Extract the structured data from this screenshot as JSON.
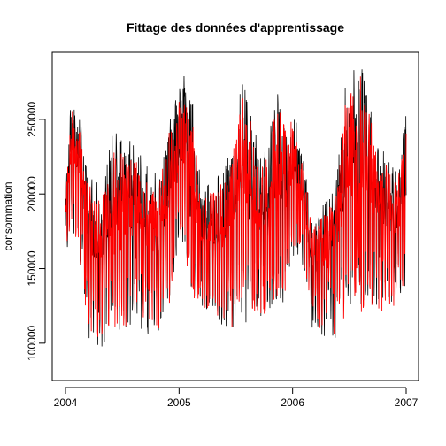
{
  "chart_data": {
    "type": "line",
    "title": "Fittage des données d'apprentissage",
    "xlabel": "",
    "ylabel": "consommation",
    "xlim": [
      2004.0,
      2007.0
    ],
    "ylim": [
      75000,
      295000
    ],
    "x_ticks": [
      2004,
      2005,
      2006,
      2007
    ],
    "x_tick_labels": [
      "2004",
      "2005",
      "2006",
      "2007"
    ],
    "y_ticks": [
      100000,
      150000,
      200000,
      250000
    ],
    "y_tick_labels": [
      "100000",
      "150000",
      "200000",
      "250000"
    ],
    "grid": false,
    "legend": "none",
    "series": [
      {
        "role": "observed",
        "color": "#000000",
        "envelope": {
          "x": [
            2004.0,
            2004.05,
            2004.12,
            2004.22,
            2004.32,
            2004.42,
            2004.52,
            2004.62,
            2004.72,
            2004.82,
            2004.92,
            2005.0,
            2005.06,
            2005.12,
            2005.2,
            2005.28,
            2005.38,
            2005.48,
            2005.56,
            2005.62,
            2005.7,
            2005.78,
            2005.86,
            2005.94,
            2006.0,
            2006.08,
            2006.18,
            2006.28,
            2006.38,
            2006.46,
            2006.54,
            2006.6,
            2006.68,
            2006.76,
            2006.84,
            2006.92,
            2007.0
          ],
          "high": [
            200000,
            268000,
            255000,
            215000,
            205000,
            245000,
            240000,
            232000,
            220000,
            212000,
            255000,
            270000,
            285000,
            262000,
            200000,
            210000,
            215000,
            240000,
            278000,
            268000,
            228000,
            235000,
            270000,
            255000,
            262000,
            232000,
            182000,
            195000,
            205000,
            275000,
            285000,
            290000,
            262000,
            238000,
            225000,
            215000,
            255000
          ],
          "low": [
            150000,
            175000,
            150000,
            90000,
            92000,
            98000,
            100000,
            105000,
            100000,
            98000,
            118000,
            155000,
            140000,
            125000,
            108000,
            112000,
            106000,
            104000,
            102000,
            108000,
            110000,
            112000,
            113000,
            118000,
            150000,
            150000,
            105000,
            100000,
            98000,
            102000,
            103000,
            108000,
            112000,
            118000,
            116000,
            120000,
            130000
          ]
        }
      },
      {
        "role": "fitted",
        "color": "#ff0000",
        "envelope": {
          "x": [
            2004.0,
            2004.05,
            2004.12,
            2004.22,
            2004.32,
            2004.42,
            2004.52,
            2004.62,
            2004.72,
            2004.82,
            2004.92,
            2005.0,
            2005.06,
            2005.12,
            2005.2,
            2005.28,
            2005.38,
            2005.48,
            2005.56,
            2005.62,
            2005.7,
            2005.78,
            2005.86,
            2005.94,
            2006.0,
            2006.08,
            2006.18,
            2006.28,
            2006.38,
            2006.46,
            2006.54,
            2006.6,
            2006.68,
            2006.76,
            2006.84,
            2006.92,
            2007.0
          ],
          "high": [
            195000,
            258000,
            245000,
            205000,
            198000,
            232000,
            228000,
            222000,
            210000,
            205000,
            245000,
            262000,
            272000,
            252000,
            195000,
            202000,
            208000,
            230000,
            268000,
            258000,
            220000,
            228000,
            260000,
            246000,
            252000,
            224000,
            178000,
            188000,
            198000,
            262000,
            275000,
            280000,
            252000,
            228000,
            218000,
            208000,
            245000
          ],
          "low": [
            155000,
            180000,
            155000,
            95000,
            96000,
            102000,
            104000,
            108000,
            104000,
            102000,
            122000,
            158000,
            145000,
            130000,
            112000,
            116000,
            110000,
            108000,
            106000,
            112000,
            114000,
            116000,
            117000,
            122000,
            154000,
            154000,
            109000,
            104000,
            102000,
            106000,
            107000,
            112000,
            116000,
            122000,
            120000,
            124000,
            134000
          ]
        }
      }
    ]
  }
}
